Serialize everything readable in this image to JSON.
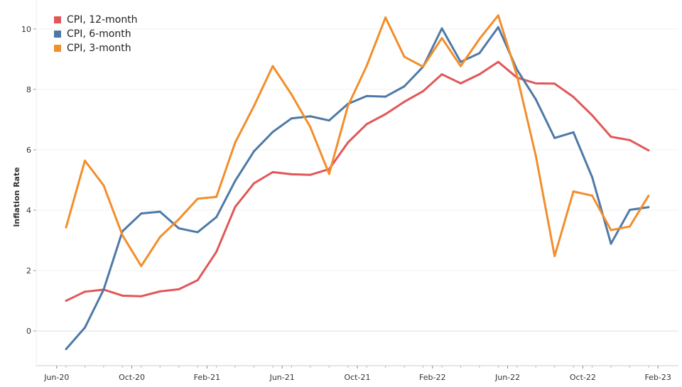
{
  "chart_data": {
    "type": "line",
    "title": "",
    "xlabel": "",
    "ylabel": "Inflation Rate",
    "ylim": [
      -1.15,
      10.96
    ],
    "yticks": [
      0,
      2,
      4,
      6,
      8,
      10
    ],
    "grid": true,
    "legend_position": "top-left",
    "x": [
      "Jul-20",
      "Aug-20",
      "Sep-20",
      "Oct-20",
      "Nov-20",
      "Dec-20",
      "Jan-21",
      "Feb-21",
      "Mar-21",
      "Apr-21",
      "May-21",
      "Jun-21",
      "Jul-21",
      "Aug-21",
      "Sep-21",
      "Oct-21",
      "Nov-21",
      "Dec-21",
      "Jan-22",
      "Feb-22",
      "Mar-22",
      "Apr-22",
      "May-22",
      "Jun-22",
      "Jul-22",
      "Aug-22",
      "Sep-22",
      "Oct-22",
      "Nov-22",
      "Dec-22",
      "Jan-23",
      "Feb-23"
    ],
    "xtick_labels": [
      "Jun-20",
      "Oct-20",
      "Feb-21",
      "Jun-21",
      "Oct-21",
      "Feb-22",
      "Jun-22",
      "Oct-22",
      "Feb-23"
    ],
    "series": [
      {
        "name": "CPI, 12-month",
        "color": "#e15759",
        "values": [
          1.0,
          1.3,
          1.37,
          1.17,
          1.15,
          1.31,
          1.38,
          1.68,
          2.62,
          4.11,
          4.89,
          5.26,
          5.19,
          5.17,
          5.36,
          6.24,
          6.85,
          7.18,
          7.59,
          7.94,
          8.5,
          8.2,
          8.5,
          8.91,
          8.39,
          8.2,
          8.19,
          7.75,
          7.14,
          6.43,
          6.32,
          5.98
        ]
      },
      {
        "name": "CPI, 6-month",
        "color": "#4e79a7",
        "values": [
          -0.6,
          0.11,
          1.37,
          3.3,
          3.89,
          3.95,
          3.4,
          3.27,
          3.77,
          4.97,
          5.95,
          6.59,
          7.04,
          7.11,
          6.97,
          7.52,
          7.78,
          7.76,
          8.1,
          8.75,
          10.02,
          8.91,
          9.2,
          10.06,
          8.65,
          7.67,
          6.39,
          6.58,
          5.09,
          2.89,
          4.01,
          4.1
        ]
      },
      {
        "name": "CPI, 3-month",
        "color": "#f28e2b",
        "values": [
          3.43,
          5.64,
          4.82,
          3.17,
          2.15,
          3.11,
          3.7,
          4.38,
          4.44,
          6.24,
          7.45,
          8.77,
          7.83,
          6.75,
          5.2,
          7.45,
          8.78,
          10.38,
          9.08,
          8.75,
          9.7,
          8.77,
          9.67,
          10.45,
          8.45,
          5.8,
          2.48,
          4.62,
          4.48,
          3.34,
          3.46,
          4.48
        ]
      }
    ]
  }
}
